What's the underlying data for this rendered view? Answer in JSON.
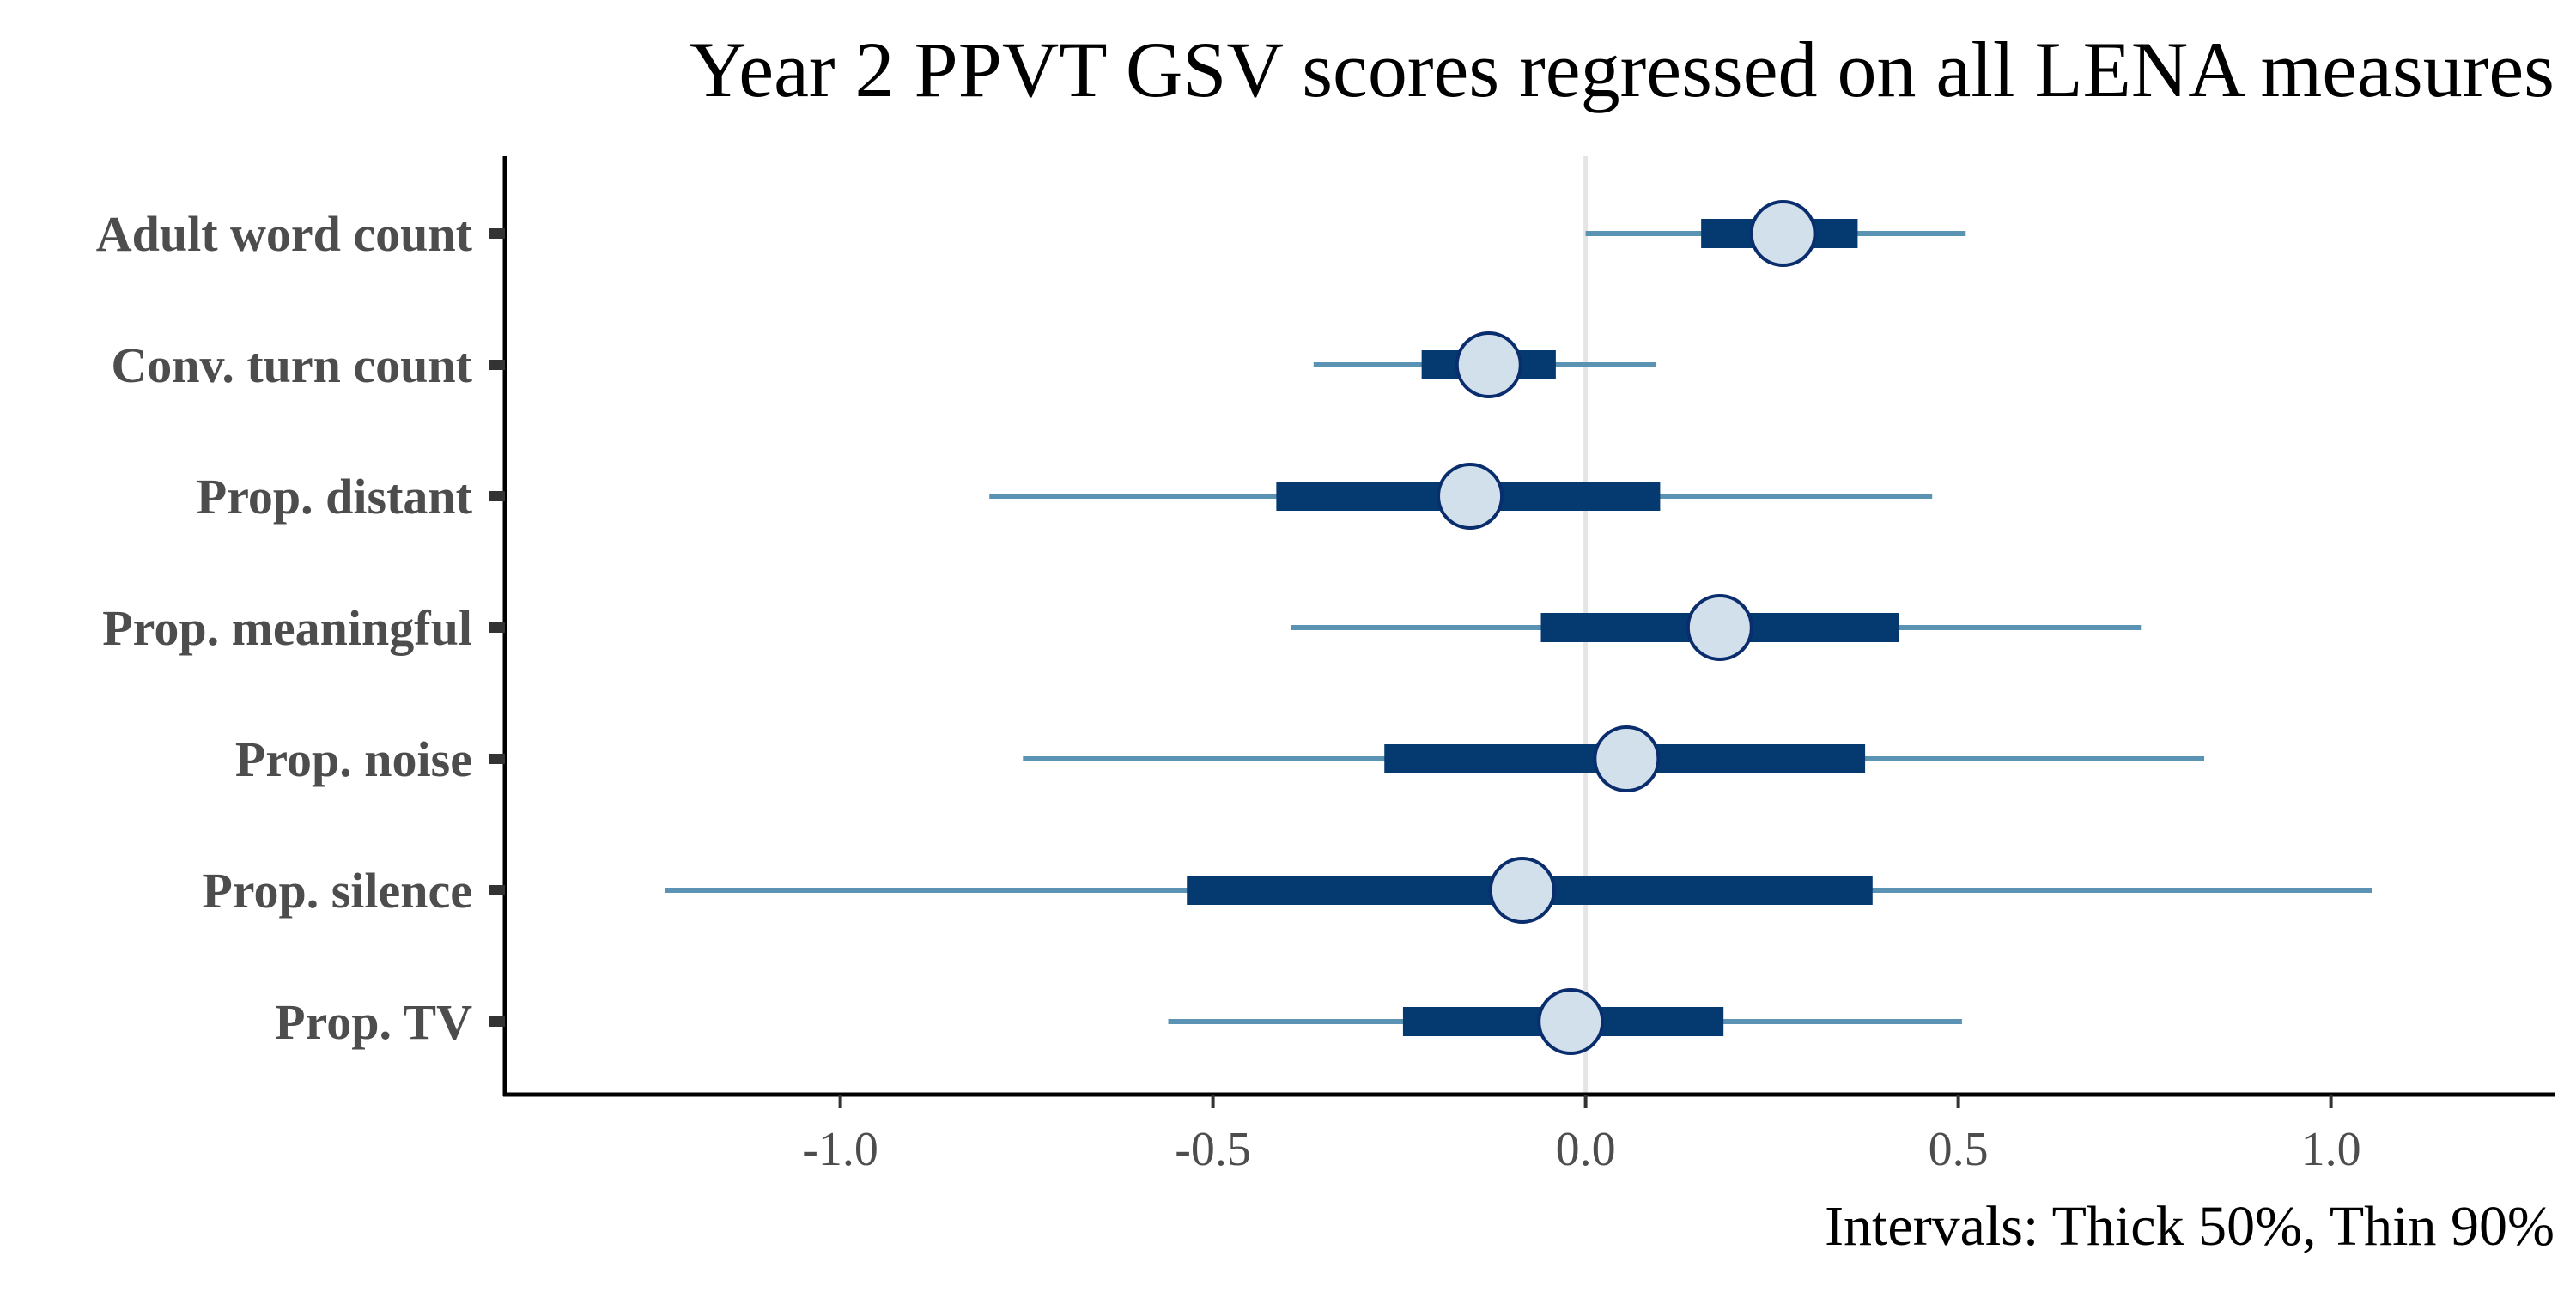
{
  "chart_data": {
    "type": "interval",
    "title": "Year 2 PPVT GSV scores regressed on all LENA measures",
    "caption": "Intervals: Thick 50%, Thin 90%",
    "xlabel": "",
    "ylabel": "",
    "xlim": [
      -1.45,
      1.3
    ],
    "xticks": [
      -1.0,
      -0.5,
      0.0,
      0.5,
      1.0
    ],
    "xtick_labels": [
      "-1.0",
      "-0.5",
      "0.0",
      "0.5",
      "1.0"
    ],
    "reference_line": 0.0,
    "grid": false,
    "categories": [
      "Adult word count",
      "Conv. turn count",
      "Prop. distant",
      "Prop. meaningful",
      "Prop. noise",
      "Prop. silence",
      "Prop. TV"
    ],
    "estimates": [
      0.265,
      -0.13,
      -0.155,
      0.18,
      0.055,
      -0.085,
      -0.02
    ],
    "inner_50": [
      [
        0.155,
        0.365
      ],
      [
        -0.22,
        -0.04
      ],
      [
        -0.415,
        0.1
      ],
      [
        -0.06,
        0.42
      ],
      [
        -0.27,
        0.375
      ],
      [
        -0.535,
        0.385
      ],
      [
        -0.245,
        0.185
      ]
    ],
    "outer_90": [
      [
        0.0,
        0.51
      ],
      [
        -0.365,
        0.095
      ],
      [
        -0.8,
        0.465
      ],
      [
        -0.395,
        0.745
      ],
      [
        -0.755,
        0.83
      ],
      [
        -1.235,
        1.055
      ],
      [
        -0.56,
        0.505
      ]
    ],
    "colors": {
      "outer_interval": "#5b93b4",
      "inner_interval": "#053a70",
      "point_fill": "#d1e0eb",
      "point_stroke": "#0a2d6e",
      "zero_line": "#e5e5e5",
      "axis": "#000000",
      "text": "#4d4d4d"
    }
  }
}
